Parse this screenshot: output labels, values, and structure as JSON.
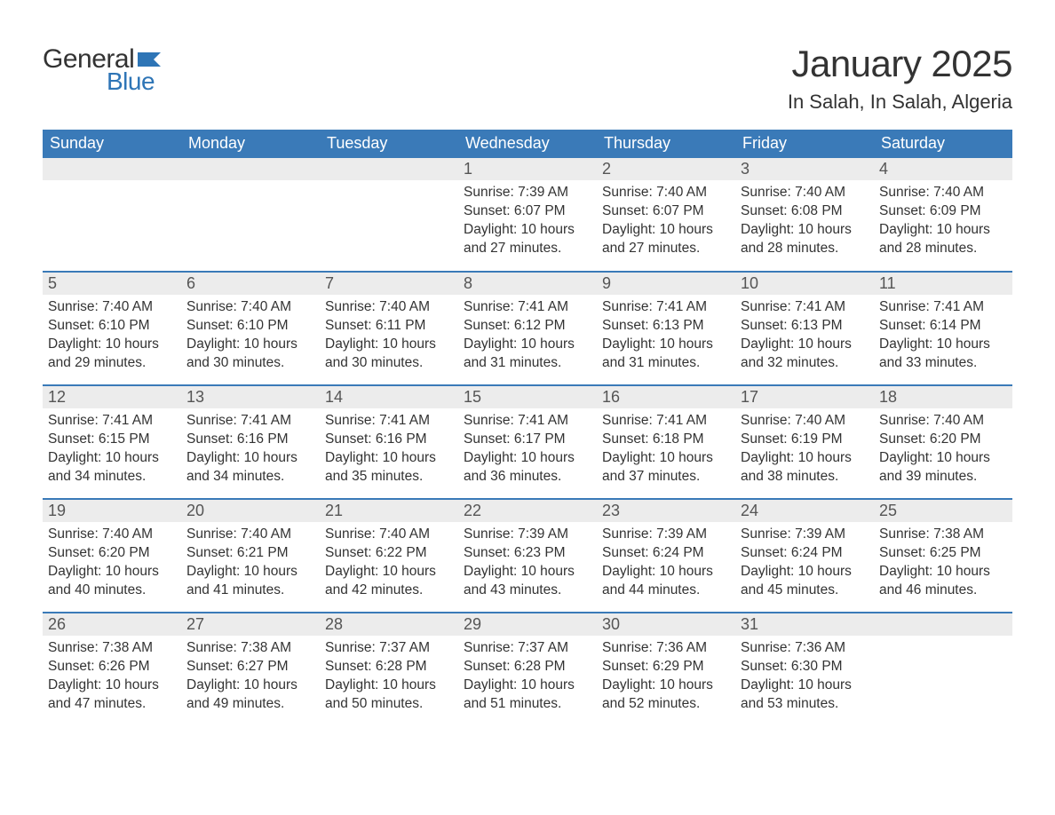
{
  "brand": {
    "word1": "General",
    "word2": "Blue",
    "word1_color": "#333333",
    "word2_color": "#2e75b6",
    "flag_color": "#2e75b6"
  },
  "title": "January 2025",
  "location": "In Salah, In Salah, Algeria",
  "colors": {
    "header_bg": "#3a7ab8",
    "header_text": "#ffffff",
    "daynum_bg": "#ececec",
    "daynum_text": "#555555",
    "body_text": "#333333",
    "row_border": "#3a7ab8",
    "page_bg": "#ffffff"
  },
  "typography": {
    "title_fontsize": 42,
    "location_fontsize": 22,
    "header_fontsize": 18,
    "daynum_fontsize": 18,
    "content_fontsize": 15.5
  },
  "day_labels": [
    "Sunday",
    "Monday",
    "Tuesday",
    "Wednesday",
    "Thursday",
    "Friday",
    "Saturday"
  ],
  "weeks": [
    [
      {
        "empty": true
      },
      {
        "empty": true
      },
      {
        "empty": true
      },
      {
        "day": "1",
        "sunrise": "Sunrise: 7:39 AM",
        "sunset": "Sunset: 6:07 PM",
        "daylight1": "Daylight: 10 hours",
        "daylight2": "and 27 minutes."
      },
      {
        "day": "2",
        "sunrise": "Sunrise: 7:40 AM",
        "sunset": "Sunset: 6:07 PM",
        "daylight1": "Daylight: 10 hours",
        "daylight2": "and 27 minutes."
      },
      {
        "day": "3",
        "sunrise": "Sunrise: 7:40 AM",
        "sunset": "Sunset: 6:08 PM",
        "daylight1": "Daylight: 10 hours",
        "daylight2": "and 28 minutes."
      },
      {
        "day": "4",
        "sunrise": "Sunrise: 7:40 AM",
        "sunset": "Sunset: 6:09 PM",
        "daylight1": "Daylight: 10 hours",
        "daylight2": "and 28 minutes."
      }
    ],
    [
      {
        "day": "5",
        "sunrise": "Sunrise: 7:40 AM",
        "sunset": "Sunset: 6:10 PM",
        "daylight1": "Daylight: 10 hours",
        "daylight2": "and 29 minutes."
      },
      {
        "day": "6",
        "sunrise": "Sunrise: 7:40 AM",
        "sunset": "Sunset: 6:10 PM",
        "daylight1": "Daylight: 10 hours",
        "daylight2": "and 30 minutes."
      },
      {
        "day": "7",
        "sunrise": "Sunrise: 7:40 AM",
        "sunset": "Sunset: 6:11 PM",
        "daylight1": "Daylight: 10 hours",
        "daylight2": "and 30 minutes."
      },
      {
        "day": "8",
        "sunrise": "Sunrise: 7:41 AM",
        "sunset": "Sunset: 6:12 PM",
        "daylight1": "Daylight: 10 hours",
        "daylight2": "and 31 minutes."
      },
      {
        "day": "9",
        "sunrise": "Sunrise: 7:41 AM",
        "sunset": "Sunset: 6:13 PM",
        "daylight1": "Daylight: 10 hours",
        "daylight2": "and 31 minutes."
      },
      {
        "day": "10",
        "sunrise": "Sunrise: 7:41 AM",
        "sunset": "Sunset: 6:13 PM",
        "daylight1": "Daylight: 10 hours",
        "daylight2": "and 32 minutes."
      },
      {
        "day": "11",
        "sunrise": "Sunrise: 7:41 AM",
        "sunset": "Sunset: 6:14 PM",
        "daylight1": "Daylight: 10 hours",
        "daylight2": "and 33 minutes."
      }
    ],
    [
      {
        "day": "12",
        "sunrise": "Sunrise: 7:41 AM",
        "sunset": "Sunset: 6:15 PM",
        "daylight1": "Daylight: 10 hours",
        "daylight2": "and 34 minutes."
      },
      {
        "day": "13",
        "sunrise": "Sunrise: 7:41 AM",
        "sunset": "Sunset: 6:16 PM",
        "daylight1": "Daylight: 10 hours",
        "daylight2": "and 34 minutes."
      },
      {
        "day": "14",
        "sunrise": "Sunrise: 7:41 AM",
        "sunset": "Sunset: 6:16 PM",
        "daylight1": "Daylight: 10 hours",
        "daylight2": "and 35 minutes."
      },
      {
        "day": "15",
        "sunrise": "Sunrise: 7:41 AM",
        "sunset": "Sunset: 6:17 PM",
        "daylight1": "Daylight: 10 hours",
        "daylight2": "and 36 minutes."
      },
      {
        "day": "16",
        "sunrise": "Sunrise: 7:41 AM",
        "sunset": "Sunset: 6:18 PM",
        "daylight1": "Daylight: 10 hours",
        "daylight2": "and 37 minutes."
      },
      {
        "day": "17",
        "sunrise": "Sunrise: 7:40 AM",
        "sunset": "Sunset: 6:19 PM",
        "daylight1": "Daylight: 10 hours",
        "daylight2": "and 38 minutes."
      },
      {
        "day": "18",
        "sunrise": "Sunrise: 7:40 AM",
        "sunset": "Sunset: 6:20 PM",
        "daylight1": "Daylight: 10 hours",
        "daylight2": "and 39 minutes."
      }
    ],
    [
      {
        "day": "19",
        "sunrise": "Sunrise: 7:40 AM",
        "sunset": "Sunset: 6:20 PM",
        "daylight1": "Daylight: 10 hours",
        "daylight2": "and 40 minutes."
      },
      {
        "day": "20",
        "sunrise": "Sunrise: 7:40 AM",
        "sunset": "Sunset: 6:21 PM",
        "daylight1": "Daylight: 10 hours",
        "daylight2": "and 41 minutes."
      },
      {
        "day": "21",
        "sunrise": "Sunrise: 7:40 AM",
        "sunset": "Sunset: 6:22 PM",
        "daylight1": "Daylight: 10 hours",
        "daylight2": "and 42 minutes."
      },
      {
        "day": "22",
        "sunrise": "Sunrise: 7:39 AM",
        "sunset": "Sunset: 6:23 PM",
        "daylight1": "Daylight: 10 hours",
        "daylight2": "and 43 minutes."
      },
      {
        "day": "23",
        "sunrise": "Sunrise: 7:39 AM",
        "sunset": "Sunset: 6:24 PM",
        "daylight1": "Daylight: 10 hours",
        "daylight2": "and 44 minutes."
      },
      {
        "day": "24",
        "sunrise": "Sunrise: 7:39 AM",
        "sunset": "Sunset: 6:24 PM",
        "daylight1": "Daylight: 10 hours",
        "daylight2": "and 45 minutes."
      },
      {
        "day": "25",
        "sunrise": "Sunrise: 7:38 AM",
        "sunset": "Sunset: 6:25 PM",
        "daylight1": "Daylight: 10 hours",
        "daylight2": "and 46 minutes."
      }
    ],
    [
      {
        "day": "26",
        "sunrise": "Sunrise: 7:38 AM",
        "sunset": "Sunset: 6:26 PM",
        "daylight1": "Daylight: 10 hours",
        "daylight2": "and 47 minutes."
      },
      {
        "day": "27",
        "sunrise": "Sunrise: 7:38 AM",
        "sunset": "Sunset: 6:27 PM",
        "daylight1": "Daylight: 10 hours",
        "daylight2": "and 49 minutes."
      },
      {
        "day": "28",
        "sunrise": "Sunrise: 7:37 AM",
        "sunset": "Sunset: 6:28 PM",
        "daylight1": "Daylight: 10 hours",
        "daylight2": "and 50 minutes."
      },
      {
        "day": "29",
        "sunrise": "Sunrise: 7:37 AM",
        "sunset": "Sunset: 6:28 PM",
        "daylight1": "Daylight: 10 hours",
        "daylight2": "and 51 minutes."
      },
      {
        "day": "30",
        "sunrise": "Sunrise: 7:36 AM",
        "sunset": "Sunset: 6:29 PM",
        "daylight1": "Daylight: 10 hours",
        "daylight2": "and 52 minutes."
      },
      {
        "day": "31",
        "sunrise": "Sunrise: 7:36 AM",
        "sunset": "Sunset: 6:30 PM",
        "daylight1": "Daylight: 10 hours",
        "daylight2": "and 53 minutes."
      },
      {
        "empty": true
      }
    ]
  ]
}
